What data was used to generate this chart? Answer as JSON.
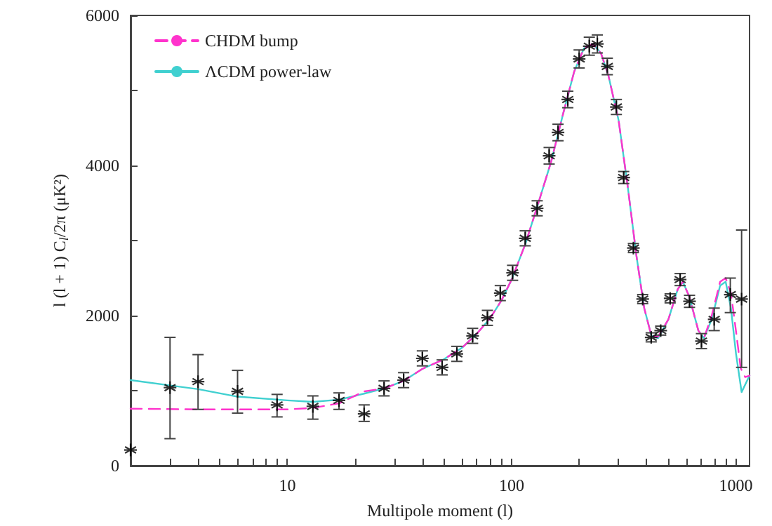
{
  "chart_data": {
    "type": "scatter",
    "xlabel": "Multipole moment (l)",
    "ylabel": "l (l + 1) C$_{l}$/2π (μK²)",
    "series": [
      {
        "name": "CHDM bump",
        "type": "line",
        "color": "#ff33cc",
        "line_style": "dashed",
        "marker": "none",
        "x": [
          2,
          4,
          6,
          10,
          13,
          17,
          22,
          27,
          33,
          40,
          50,
          60,
          70,
          80,
          90,
          100,
          115,
          130,
          150,
          170,
          190,
          210,
          230,
          250,
          270,
          300,
          330,
          360,
          390,
          420,
          450,
          500,
          550,
          580,
          620,
          680,
          720,
          780,
          850,
          900,
          950,
          1000,
          1050,
          1100,
          1150
        ],
        "values": [
          760,
          750,
          750,
          750,
          770,
          830,
          990,
          1030,
          1130,
          1290,
          1420,
          1570,
          1760,
          1960,
          2200,
          2480,
          2950,
          3450,
          4050,
          4700,
          5250,
          5560,
          5620,
          5500,
          5200,
          4600,
          3700,
          2800,
          2100,
          1730,
          1720,
          1950,
          2350,
          2450,
          2250,
          1800,
          1700,
          2000,
          2450,
          2500,
          2300,
          1800,
          1300,
          1180,
          1200
        ]
      },
      {
        "name": "ΛCDM power-law",
        "type": "line",
        "color": "#40d0d0",
        "line_style": "solid",
        "marker": "none",
        "x": [
          2,
          4,
          6,
          10,
          13,
          17,
          22,
          27,
          33,
          40,
          50,
          60,
          70,
          80,
          90,
          100,
          115,
          130,
          150,
          170,
          190,
          210,
          230,
          250,
          270,
          300,
          330,
          360,
          390,
          420,
          450,
          500,
          550,
          580,
          620,
          680,
          720,
          780,
          850,
          900,
          950,
          1000,
          1060,
          1150
        ],
        "values": [
          1140,
          1020,
          920,
          870,
          850,
          880,
          960,
          1030,
          1130,
          1290,
          1420,
          1570,
          1760,
          1960,
          2200,
          2480,
          2950,
          3450,
          4050,
          4700,
          5250,
          5560,
          5620,
          5500,
          5200,
          4600,
          3700,
          2800,
          2100,
          1730,
          1700,
          1950,
          2350,
          2450,
          2250,
          1800,
          1700,
          1950,
          2400,
          2450,
          2100,
          1500,
          980,
          1200
        ]
      },
      {
        "color": "#000000",
        "marker": "cross",
        "x": [
          2,
          3,
          4,
          6,
          9,
          13,
          17,
          22,
          27,
          33,
          40,
          49,
          57,
          67,
          78,
          89,
          101,
          115,
          130,
          147,
          161,
          178,
          200,
          222,
          241,
          267,
          293,
          316,
          349,
          384,
          419,
          462,
          509,
          564,
          621,
          702,
          800,
          944,
          1060
        ],
        "values": [
          210,
          1040,
          1120,
          990,
          810,
          790,
          870,
          690,
          1030,
          1140,
          1430,
          1310,
          1490,
          1730,
          1970,
          2300,
          2570,
          3030,
          3430,
          4130,
          4440,
          4880,
          5420,
          5590,
          5620,
          5320,
          4780,
          3840,
          2900,
          2220,
          1710,
          1800,
          2230,
          2480,
          2190,
          1660,
          1950,
          2280,
          2220
        ],
        "errors": [
          null,
          [
            360,
            1710
          ],
          [
            750,
            1480
          ],
          [
            700,
            1270
          ],
          [
            650,
            950
          ],
          [
            620,
            930
          ],
          [
            750,
            970
          ],
          [
            590,
            810
          ],
          100,
          100,
          100,
          100,
          100,
          100,
          100,
          100,
          100,
          100,
          100,
          110,
          110,
          110,
          120,
          120,
          120,
          110,
          100,
          80,
          60,
          60,
          60,
          60,
          60,
          80,
          80,
          100,
          150,
          [
            2040,
            2500
          ],
          [
            1310,
            3140
          ]
        ]
      }
    ],
    "log": "x",
    "xlim": [
      2,
      1150
    ],
    "xticks": [
      {
        "value": 2,
        "label": null
      },
      {
        "value": 3,
        "label": null
      },
      {
        "value": 4,
        "label": null
      },
      {
        "value": 5,
        "label": null
      },
      {
        "value": 6,
        "label": null
      },
      {
        "value": 7,
        "label": null
      },
      {
        "value": 8,
        "label": null
      },
      {
        "value": 9,
        "label": null
      },
      10,
      {
        "value": 20,
        "label": null
      },
      {
        "value": 30,
        "label": null
      },
      {
        "value": 40,
        "label": null
      },
      {
        "value": 50,
        "label": null
      },
      {
        "value": 60,
        "label": null
      },
      {
        "value": 70,
        "label": null
      },
      {
        "value": 80,
        "label": null
      },
      {
        "value": 90,
        "label": null
      },
      100,
      {
        "value": 200,
        "label": null
      },
      {
        "value": 300,
        "label": null
      },
      {
        "value": 400,
        "label": null
      },
      {
        "value": 500,
        "label": null
      },
      {
        "value": 600,
        "label": null
      },
      {
        "value": 700,
        "label": null
      },
      {
        "value": 800,
        "label": null
      },
      {
        "value": 900,
        "label": null
      },
      1000
    ],
    "ylim": [
      0,
      6000
    ],
    "yticks": [
      0,
      {
        "value": 1000,
        "label": null
      },
      2000,
      {
        "value": 3000,
        "label": null
      },
      4000,
      {
        "value": 5000,
        "label": null
      },
      6000
    ],
    "grid": false,
    "legend": "top left"
  }
}
